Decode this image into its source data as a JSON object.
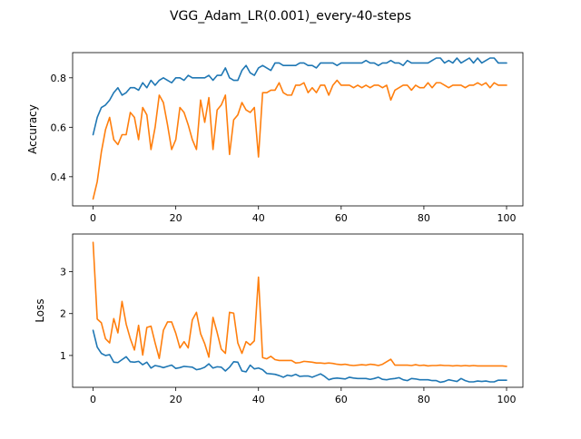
{
  "figure": {
    "title": "VGG_Adam_LR(0.001)_every-40-steps"
  },
  "chart_data": [
    {
      "type": "line",
      "title": "",
      "xlabel": "",
      "ylabel": "Accuracy",
      "xlim": [
        -4.95,
        103.95
      ],
      "ylim": [
        0.282,
        0.902
      ],
      "xticks": [
        0,
        20,
        40,
        60,
        80,
        100
      ],
      "yticks": [
        0.4,
        0.6,
        0.8
      ],
      "ytick_labels": [
        "0.4",
        "0.6",
        "0.8"
      ],
      "grid": false,
      "legend": "none",
      "series": [
        {
          "color": "#1f77b4",
          "values": [
            0.57,
            0.64,
            0.68,
            0.69,
            0.71,
            0.74,
            0.76,
            0.73,
            0.74,
            0.76,
            0.76,
            0.75,
            0.78,
            0.76,
            0.79,
            0.77,
            0.79,
            0.8,
            0.79,
            0.78,
            0.8,
            0.8,
            0.79,
            0.81,
            0.8,
            0.8,
            0.8,
            0.8,
            0.81,
            0.79,
            0.81,
            0.81,
            0.84,
            0.8,
            0.79,
            0.79,
            0.83,
            0.85,
            0.82,
            0.81,
            0.84,
            0.85,
            0.84,
            0.83,
            0.86,
            0.86,
            0.85,
            0.85,
            0.85,
            0.85,
            0.86,
            0.86,
            0.85,
            0.85,
            0.84,
            0.86,
            0.86,
            0.86,
            0.86,
            0.85,
            0.86,
            0.86,
            0.86,
            0.86,
            0.86,
            0.86,
            0.87,
            0.86,
            0.86,
            0.85,
            0.86,
            0.86,
            0.87,
            0.86,
            0.86,
            0.85,
            0.87,
            0.86,
            0.86,
            0.86,
            0.86,
            0.86,
            0.87,
            0.88,
            0.88,
            0.86,
            0.87,
            0.86,
            0.88,
            0.86,
            0.87,
            0.88,
            0.86,
            0.88,
            0.86,
            0.87,
            0.88,
            0.88,
            0.86,
            0.86,
            0.86
          ]
        },
        {
          "color": "#ff7f0e",
          "values": [
            0.31,
            0.38,
            0.5,
            0.59,
            0.64,
            0.55,
            0.53,
            0.57,
            0.57,
            0.66,
            0.64,
            0.55,
            0.68,
            0.65,
            0.51,
            0.6,
            0.73,
            0.7,
            0.61,
            0.51,
            0.55,
            0.68,
            0.66,
            0.61,
            0.55,
            0.51,
            0.71,
            0.62,
            0.72,
            0.51,
            0.67,
            0.69,
            0.73,
            0.49,
            0.63,
            0.65,
            0.7,
            0.67,
            0.66,
            0.68,
            0.48,
            0.74,
            0.74,
            0.75,
            0.75,
            0.78,
            0.74,
            0.73,
            0.73,
            0.77,
            0.77,
            0.78,
            0.74,
            0.76,
            0.74,
            0.77,
            0.77,
            0.73,
            0.77,
            0.79,
            0.77,
            0.77,
            0.77,
            0.76,
            0.77,
            0.76,
            0.77,
            0.76,
            0.77,
            0.77,
            0.76,
            0.77,
            0.71,
            0.75,
            0.76,
            0.77,
            0.77,
            0.75,
            0.77,
            0.76,
            0.76,
            0.78,
            0.76,
            0.78,
            0.78,
            0.77,
            0.76,
            0.77,
            0.77,
            0.77,
            0.76,
            0.77,
            0.77,
            0.78,
            0.77,
            0.78,
            0.76,
            0.78,
            0.77,
            0.77,
            0.77
          ]
        }
      ]
    },
    {
      "type": "line",
      "title": "",
      "xlabel": "",
      "ylabel": "Loss",
      "xlim": [
        -4.95,
        103.95
      ],
      "ylim": [
        0.24,
        3.9
      ],
      "xticks": [
        0,
        20,
        40,
        60,
        80,
        100
      ],
      "yticks": [
        1,
        2,
        3
      ],
      "ytick_labels": [
        "1",
        "2",
        "3"
      ],
      "grid": false,
      "legend": "none",
      "series": [
        {
          "color": "#1f77b4",
          "values": [
            1.6,
            1.2,
            1.05,
            1.0,
            1.02,
            0.84,
            0.83,
            0.9,
            0.97,
            0.85,
            0.84,
            0.86,
            0.78,
            0.84,
            0.7,
            0.76,
            0.74,
            0.71,
            0.74,
            0.77,
            0.69,
            0.71,
            0.74,
            0.73,
            0.72,
            0.66,
            0.68,
            0.72,
            0.8,
            0.7,
            0.73,
            0.72,
            0.63,
            0.72,
            0.85,
            0.84,
            0.63,
            0.61,
            0.77,
            0.68,
            0.7,
            0.66,
            0.57,
            0.56,
            0.55,
            0.52,
            0.48,
            0.53,
            0.51,
            0.55,
            0.5,
            0.51,
            0.51,
            0.48,
            0.52,
            0.56,
            0.5,
            0.42,
            0.45,
            0.46,
            0.45,
            0.44,
            0.48,
            0.46,
            0.45,
            0.45,
            0.45,
            0.43,
            0.45,
            0.48,
            0.43,
            0.42,
            0.44,
            0.45,
            0.47,
            0.42,
            0.4,
            0.45,
            0.44,
            0.42,
            0.42,
            0.42,
            0.4,
            0.4,
            0.36,
            0.38,
            0.42,
            0.4,
            0.38,
            0.45,
            0.4,
            0.37,
            0.37,
            0.39,
            0.38,
            0.39,
            0.37,
            0.37,
            0.41,
            0.41,
            0.41
          ]
        },
        {
          "color": "#ff7f0e",
          "values": [
            3.7,
            1.87,
            1.78,
            1.4,
            1.3,
            1.88,
            1.54,
            2.29,
            1.75,
            1.4,
            1.13,
            1.72,
            1.01,
            1.67,
            1.7,
            1.3,
            0.93,
            1.6,
            1.8,
            1.8,
            1.53,
            1.18,
            1.33,
            1.18,
            1.85,
            2.03,
            1.52,
            1.28,
            0.96,
            1.91,
            1.55,
            1.15,
            1.05,
            2.03,
            2.01,
            1.3,
            1.05,
            1.33,
            1.25,
            1.35,
            2.87,
            0.95,
            0.92,
            0.98,
            0.9,
            0.88,
            0.88,
            0.88,
            0.88,
            0.82,
            0.83,
            0.86,
            0.85,
            0.84,
            0.82,
            0.82,
            0.81,
            0.82,
            0.81,
            0.79,
            0.78,
            0.79,
            0.77,
            0.76,
            0.77,
            0.78,
            0.77,
            0.79,
            0.78,
            0.76,
            0.79,
            0.85,
            0.91,
            0.77,
            0.77,
            0.77,
            0.77,
            0.76,
            0.78,
            0.76,
            0.77,
            0.75,
            0.76,
            0.76,
            0.77,
            0.76,
            0.76,
            0.75,
            0.76,
            0.75,
            0.76,
            0.75,
            0.76,
            0.75,
            0.75,
            0.75,
            0.75,
            0.75,
            0.75,
            0.75,
            0.74
          ]
        }
      ]
    }
  ]
}
